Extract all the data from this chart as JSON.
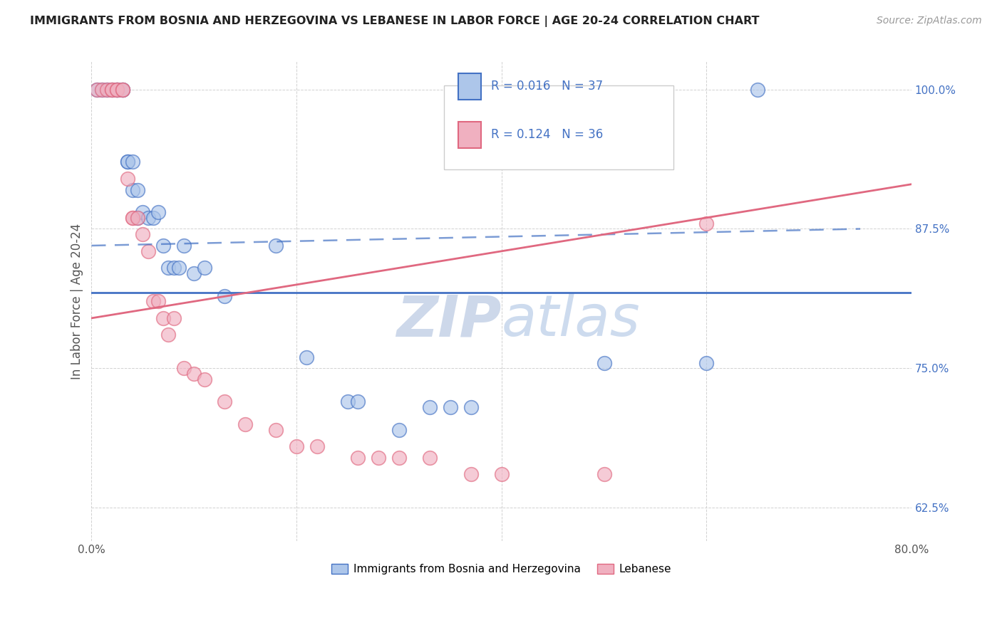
{
  "title": "IMMIGRANTS FROM BOSNIA AND HERZEGOVINA VS LEBANESE IN LABOR FORCE | AGE 20-24 CORRELATION CHART",
  "source": "Source: ZipAtlas.com",
  "ylabel": "In Labor Force | Age 20-24",
  "watermark_zip": "ZIP",
  "watermark_atlas": "atlas",
  "xlim": [
    0.0,
    0.8
  ],
  "ylim": [
    0.595,
    1.025
  ],
  "xticks": [
    0.0,
    0.2,
    0.4,
    0.6,
    0.8
  ],
  "xtick_labels": [
    "0.0%",
    "",
    "",
    "",
    "80.0%"
  ],
  "ytick_labels": [
    "62.5%",
    "75.0%",
    "87.5%",
    "100.0%"
  ],
  "yticks": [
    0.625,
    0.75,
    0.875,
    1.0
  ],
  "blue_color": "#adc6ea",
  "pink_color": "#f0b0c0",
  "blue_line_color": "#4472C4",
  "pink_line_color": "#E06880",
  "legend_text_color": "#4472C4",
  "bosnia_x": [
    0.005,
    0.01,
    0.015,
    0.02,
    0.025,
    0.025,
    0.03,
    0.03,
    0.035,
    0.035,
    0.04,
    0.04,
    0.045,
    0.045,
    0.05,
    0.055,
    0.06,
    0.065,
    0.07,
    0.075,
    0.08,
    0.085,
    0.09,
    0.1,
    0.11,
    0.13,
    0.18,
    0.21,
    0.25,
    0.26,
    0.3,
    0.33,
    0.35,
    0.37,
    0.5,
    0.6,
    0.65
  ],
  "bosnia_y": [
    1.0,
    1.0,
    1.0,
    1.0,
    1.0,
    1.0,
    1.0,
    1.0,
    0.935,
    0.935,
    0.935,
    0.91,
    0.91,
    0.885,
    0.89,
    0.885,
    0.885,
    0.89,
    0.86,
    0.84,
    0.84,
    0.84,
    0.86,
    0.835,
    0.84,
    0.815,
    0.86,
    0.76,
    0.72,
    0.72,
    0.695,
    0.715,
    0.715,
    0.715,
    0.755,
    0.755,
    1.0
  ],
  "lebanese_x": [
    0.005,
    0.01,
    0.015,
    0.02,
    0.02,
    0.025,
    0.025,
    0.03,
    0.03,
    0.035,
    0.04,
    0.04,
    0.045,
    0.05,
    0.055,
    0.06,
    0.065,
    0.07,
    0.075,
    0.08,
    0.09,
    0.1,
    0.11,
    0.13,
    0.15,
    0.18,
    0.2,
    0.22,
    0.26,
    0.28,
    0.3,
    0.33,
    0.37,
    0.4,
    0.5,
    0.6
  ],
  "lebanese_y": [
    1.0,
    1.0,
    1.0,
    1.0,
    1.0,
    1.0,
    1.0,
    1.0,
    1.0,
    0.92,
    0.885,
    0.885,
    0.885,
    0.87,
    0.855,
    0.81,
    0.81,
    0.795,
    0.78,
    0.795,
    0.75,
    0.745,
    0.74,
    0.72,
    0.7,
    0.695,
    0.68,
    0.68,
    0.67,
    0.67,
    0.67,
    0.67,
    0.655,
    0.655,
    0.655,
    0.88
  ],
  "bosnia_trend_x": [
    0.0,
    0.8
  ],
  "bosnia_trend_y": [
    0.818,
    0.818
  ],
  "lebanese_trend_x": [
    0.0,
    0.8
  ],
  "lebanese_trend_y": [
    0.795,
    0.915
  ]
}
